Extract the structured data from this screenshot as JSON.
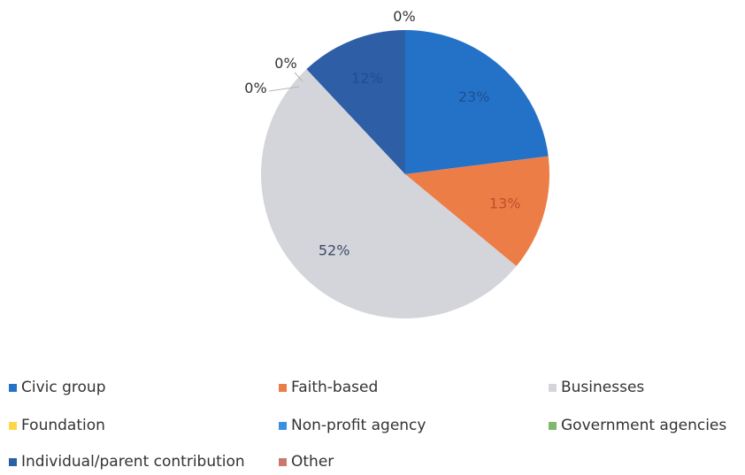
{
  "chart_data": {
    "type": "pie",
    "slices": [
      {
        "label": "Civic group",
        "value": 23,
        "data_label": "23%",
        "color": "#2472c8"
      },
      {
        "label": "Faith-based",
        "value": 13,
        "data_label": "13%",
        "color": "#ed7d47"
      },
      {
        "label": "Businesses",
        "value": 52,
        "data_label": "52%",
        "color": "#d3d5db"
      },
      {
        "label": "Foundation",
        "value": 0,
        "data_label": "0%",
        "color": "#ffd54a"
      },
      {
        "label": "Non-profit agency",
        "value": 0,
        "data_label": "0%",
        "color": "#3a8fe0"
      },
      {
        "label": "Government agencies",
        "value": 0,
        "data_label": "",
        "color": "#7fb86a"
      },
      {
        "label": "Individual/parent contribution",
        "value": 12,
        "data_label": "12%",
        "color": "#2d5ea6"
      },
      {
        "label": "Other",
        "value": 0,
        "data_label": "0%",
        "color": "#c97a6a"
      }
    ],
    "legend_position": "bottom"
  }
}
